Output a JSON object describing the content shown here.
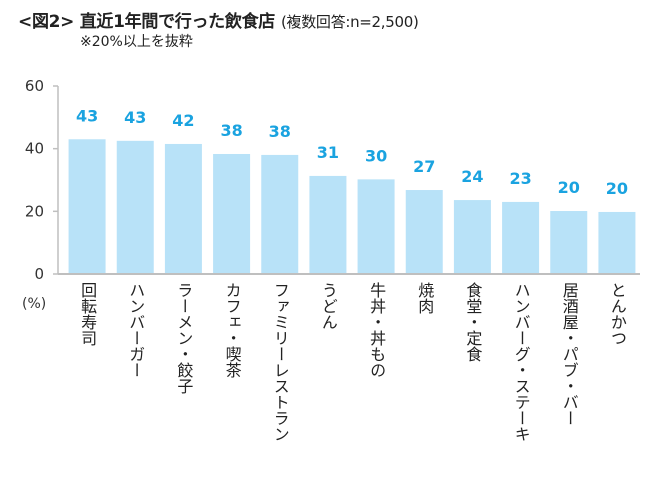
{
  "chart_data": {
    "type": "bar",
    "title": "<図2> 直近1年間で行った飲食店",
    "subtitle": "(複数回答:n=2,500)",
    "note": "※20%以上を抜粋",
    "xlabel": "",
    "ylabel": "(%)",
    "ylim": [
      0,
      60
    ],
    "yticks": [
      "0",
      "20",
      "40",
      "60"
    ],
    "grid": false,
    "categories": [
      "回転寿司",
      "ハンバーガー",
      "ラーメン・餃子",
      "カフェ・喫茶",
      "ファミリーレストラン",
      "うどん",
      "牛丼・丼もの",
      "焼肉",
      "食堂・定食",
      "ハンバーグ・ステーキ",
      "居酒屋・パブ・バー",
      "とんかつ"
    ],
    "values": [
      43,
      42.5,
      41.5,
      38.3,
      38,
      31.3,
      30.2,
      26.8,
      23.6,
      23,
      20.1,
      19.8
    ],
    "labels": [
      "43",
      "43",
      "42",
      "38",
      "38",
      "31",
      "30",
      "27",
      "24",
      "23",
      "20",
      "20"
    ],
    "colors": {
      "bar": "#b8e2f8",
      "label": "#1aa3e0",
      "axis": "#bfbfbf"
    }
  }
}
